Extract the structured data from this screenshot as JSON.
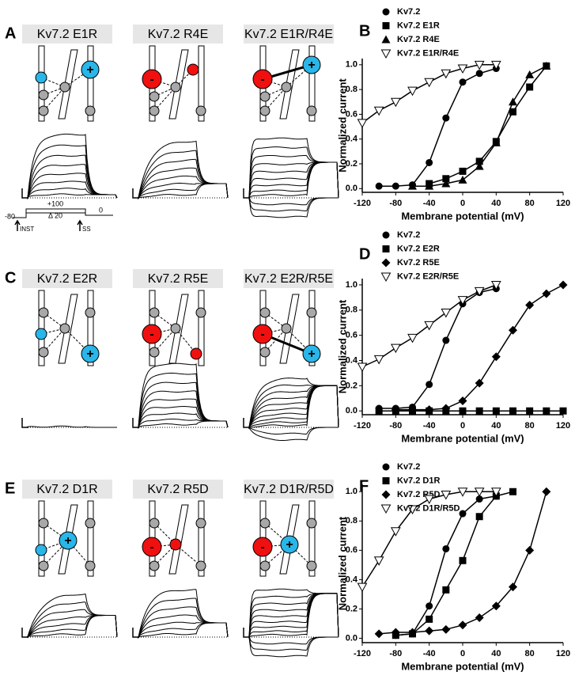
{
  "panels": [
    {
      "letter": "A",
      "titles": [
        "Kv7.2 E1R",
        "Kv7.2 R4E",
        "Kv7.2 E1R/R4E"
      ]
    },
    {
      "letter": "C",
      "titles": [
        "Kv7.2 E2R",
        "Kv7.2 R5E",
        "Kv7.2 E2R/R5E"
      ]
    },
    {
      "letter": "E",
      "titles": [
        "Kv7.2 D1R",
        "Kv7.2 R5D",
        "Kv7.2 D1R/R5D"
      ]
    }
  ],
  "symbols": {
    "plus": "+",
    "minus": "-"
  },
  "protocol": {
    "hold": "-80",
    "step": "+100",
    "increment": "Δ 20",
    "tail": "0",
    "inst": "INST",
    "ss": "SS"
  },
  "chart_data": [
    {
      "type": "line",
      "label": "B",
      "xlabel": "Membrane potential (mV)",
      "ylabel": "Normalized current",
      "xlim": [
        -120,
        120
      ],
      "xticks": [
        -120,
        -80,
        -40,
        0,
        40,
        80,
        120
      ],
      "ylim": [
        -0.03,
        1.05
      ],
      "yticks": [
        {
          "value": 0,
          "label": "0.0"
        },
        {
          "value": 0.2,
          "label": "0.2"
        },
        {
          "value": 0.4,
          "label": "0.4"
        },
        {
          "value": 0.6,
          "label": "0.6"
        },
        {
          "value": 0.8,
          "label": "0.8"
        },
        {
          "value": 1,
          "label": "1.0"
        }
      ],
      "series": [
        {
          "name": "Kv7.2",
          "marker": "circle",
          "color": "#000",
          "x": [
            -100,
            -80,
            -60,
            -40,
            -20,
            0,
            20,
            40
          ],
          "values": [
            0.02,
            0.02,
            0.03,
            0.21,
            0.57,
            0.86,
            0.93,
            0.97
          ]
        },
        {
          "name": "Kv7.2 E1R",
          "marker": "square",
          "color": "#000",
          "x": [
            -40,
            -20,
            0,
            20,
            40,
            60,
            80,
            100
          ],
          "values": [
            0.04,
            0.08,
            0.14,
            0.22,
            0.38,
            0.62,
            0.82,
            0.99
          ]
        },
        {
          "name": "Kv7.2 R4E",
          "marker": "triangle",
          "color": "#000",
          "x": [
            -60,
            -40,
            -20,
            0,
            20,
            40,
            60,
            80,
            100
          ],
          "values": [
            0.02,
            0.02,
            0.04,
            0.07,
            0.18,
            0.37,
            0.7,
            0.92,
            0.99
          ]
        },
        {
          "name": "Kv7.2 E1R/R4E",
          "marker": "open-triangle-down",
          "color": "#000",
          "x": [
            -120,
            -100,
            -80,
            -60,
            -40,
            -20,
            0,
            20,
            40
          ],
          "values": [
            0.53,
            0.63,
            0.7,
            0.79,
            0.86,
            0.93,
            0.97,
            1.0,
            1.0
          ]
        }
      ]
    },
    {
      "type": "line",
      "label": "D",
      "xlabel": "Membrane potential (mV)",
      "ylabel": "Normalized current",
      "xlim": [
        -120,
        120
      ],
      "xticks": [
        -120,
        -80,
        -40,
        0,
        40,
        80,
        120
      ],
      "ylim": [
        -0.03,
        1.05
      ],
      "yticks": [
        {
          "value": 0,
          "label": "0.0"
        },
        {
          "value": 0.2,
          "label": "0.2"
        },
        {
          "value": 0.4,
          "label": "0.4"
        },
        {
          "value": 0.6,
          "label": "0.6"
        },
        {
          "value": 0.8,
          "label": "0.8"
        },
        {
          "value": 1,
          "label": "1.0"
        }
      ],
      "series": [
        {
          "name": "Kv7.2",
          "marker": "circle",
          "color": "#000",
          "x": [
            -100,
            -80,
            -60,
            -40,
            -20,
            0,
            20,
            40
          ],
          "values": [
            0.02,
            0.02,
            0.03,
            0.21,
            0.56,
            0.85,
            0.94,
            0.97
          ]
        },
        {
          "name": "Kv7.2 E2R",
          "marker": "square",
          "color": "#000",
          "x": [
            -100,
            -80,
            -60,
            -40,
            -20,
            0,
            20,
            40,
            60,
            80,
            100,
            120
          ],
          "values": [
            0,
            0,
            0,
            0,
            0,
            0,
            0,
            0,
            0,
            0,
            0,
            0
          ]
        },
        {
          "name": "Kv7.2 R5E",
          "marker": "diamond",
          "color": "#000",
          "x": [
            -80,
            -60,
            -40,
            -20,
            0,
            20,
            40,
            60,
            80,
            100,
            120
          ],
          "values": [
            0.01,
            0.01,
            0.01,
            0.02,
            0.08,
            0.22,
            0.43,
            0.64,
            0.84,
            0.93,
            1.0
          ]
        },
        {
          "name": "Kv7.2 E2R/R5E",
          "marker": "open-triangle-down",
          "color": "#000",
          "x": [
            -120,
            -100,
            -80,
            -60,
            -40,
            -20,
            0,
            20,
            40
          ],
          "values": [
            0.35,
            0.41,
            0.5,
            0.58,
            0.68,
            0.78,
            0.88,
            0.95,
            1.0
          ]
        }
      ]
    },
    {
      "type": "line",
      "label": "F",
      "xlabel": "Membrane potential (mV)",
      "ylabel": "Normalized current",
      "xlim": [
        -120,
        120
      ],
      "xticks": [
        -120,
        -80,
        -40,
        0,
        40,
        80,
        120
      ],
      "ylim": [
        -0.03,
        1.05
      ],
      "yticks": [
        {
          "value": 0,
          "label": "0.0"
        },
        {
          "value": 0.2,
          "label": "0.2"
        },
        {
          "value": 0.4,
          "label": "0.4"
        },
        {
          "value": 0.6,
          "label": "0.6"
        },
        {
          "value": 0.8,
          "label": "0.8"
        },
        {
          "value": 1,
          "label": "1.0"
        }
      ],
      "series": [
        {
          "name": "Kv7.2",
          "marker": "circle",
          "color": "#000",
          "x": [
            -80,
            -60,
            -40,
            -20,
            0,
            20,
            40
          ],
          "values": [
            0.02,
            0.03,
            0.22,
            0.61,
            0.85,
            0.95,
            0.97
          ]
        },
        {
          "name": "Kv7.2 D1R",
          "marker": "square",
          "color": "#000",
          "x": [
            -80,
            -60,
            -40,
            -20,
            0,
            20,
            40,
            60
          ],
          "values": [
            0.02,
            0.03,
            0.13,
            0.33,
            0.53,
            0.83,
            0.97,
            1.0
          ]
        },
        {
          "name": "Kv7.2 R5D",
          "marker": "diamond",
          "color": "#000",
          "x": [
            -100,
            -80,
            -60,
            -40,
            -20,
            0,
            20,
            40,
            60,
            80,
            100
          ],
          "values": [
            0.03,
            0.04,
            0.04,
            0.05,
            0.06,
            0.09,
            0.14,
            0.22,
            0.35,
            0.6,
            1.0
          ]
        },
        {
          "name": "Kv7.2 D1R/R5D",
          "marker": "open-triangle-down",
          "color": "#000",
          "x": [
            -120,
            -100,
            -80,
            -60,
            -40,
            -20,
            0,
            20,
            40
          ],
          "values": [
            0.35,
            0.53,
            0.73,
            0.88,
            0.95,
            0.98,
            1.0,
            1.0,
            1.0
          ]
        }
      ]
    }
  ]
}
